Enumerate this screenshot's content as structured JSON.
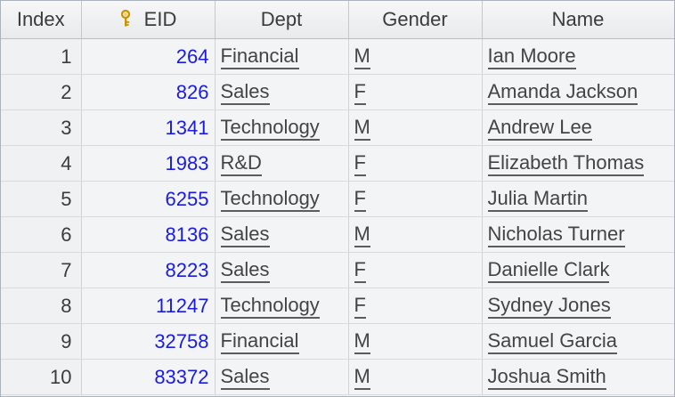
{
  "columns": {
    "index": "Index",
    "eid": "EID",
    "dept": "Dept",
    "gender": "Gender",
    "name": "Name"
  },
  "rows": [
    {
      "index": "1",
      "eid": "264",
      "dept": "Financial",
      "gender": "M",
      "name": "Ian Moore"
    },
    {
      "index": "2",
      "eid": "826",
      "dept": "Sales",
      "gender": "F",
      "name": "Amanda Jackson"
    },
    {
      "index": "3",
      "eid": "1341",
      "dept": "Technology",
      "gender": "M",
      "name": "Andrew Lee"
    },
    {
      "index": "4",
      "eid": "1983",
      "dept": "R&D",
      "gender": "F",
      "name": "Elizabeth Thomas"
    },
    {
      "index": "5",
      "eid": "6255",
      "dept": "Technology",
      "gender": "F",
      "name": "Julia Martin"
    },
    {
      "index": "6",
      "eid": "8136",
      "dept": "Sales",
      "gender": "M",
      "name": "Nicholas Turner"
    },
    {
      "index": "7",
      "eid": "8223",
      "dept": "Sales",
      "gender": "F",
      "name": "Danielle Clark"
    },
    {
      "index": "8",
      "eid": "11247",
      "dept": "Technology",
      "gender": "F",
      "name": "Sydney Jones"
    },
    {
      "index": "9",
      "eid": "32758",
      "dept": "Financial",
      "gender": "M",
      "name": "Samuel Garcia"
    },
    {
      "index": "10",
      "eid": "83372",
      "dept": "Sales",
      "gender": "M",
      "name": "Joshua Smith"
    }
  ],
  "icons": {
    "primary_key": "key-icon"
  },
  "colors": {
    "eid_text": "#1a1ae6",
    "key_icon": "#d4a017"
  }
}
